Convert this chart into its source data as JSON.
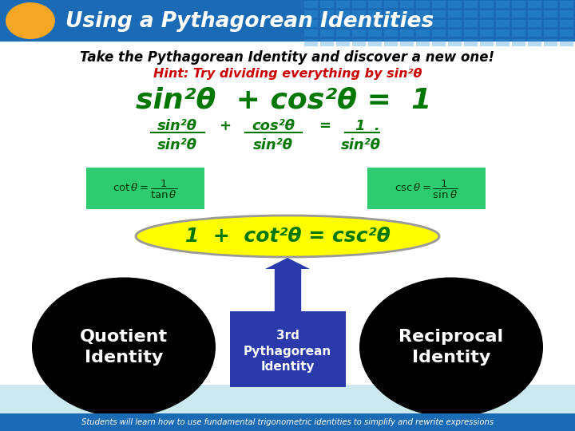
{
  "title": "Using a Pythagorean Identities",
  "header_bg": "#1a6ab5",
  "header_text_color": "#ffffff",
  "slide_bg": "#cce8f0",
  "oval_color": "#f5a623",
  "line1": "Take the Pythagorean Identity and discover a new one!",
  "line1_color": "#000000",
  "line2": "Hint: Try dividing everything by sin²θ",
  "line2_color": "#cc0000",
  "eq1": "sin²θ  + cos²θ =  1",
  "eq1_color": "#007700",
  "eq2_color": "#007700",
  "result_box_color": "#ffff00",
  "result_border_color": "#999999",
  "result_text": "1  +  cot²θ = csc²θ",
  "result_text_color": "#007700",
  "bubble1_color": "#000000",
  "bubble1_text": "Quotient\nIdentity",
  "bubble2_color": "#2a3aaa",
  "bubble2_text": "3rd\nPythagorean\nIdentity",
  "bubble3_color": "#000000",
  "bubble3_text": "Reciprocal\nIdentity",
  "footer_text": "Students will learn how to use fundamental trigonometric identities to simplify and rewrite expressions",
  "footer_bg": "#1a6ab5",
  "footer_text_color": "#ffffff",
  "green_box_color": "#2ecc71",
  "arrow_color": "#2a3aaa"
}
